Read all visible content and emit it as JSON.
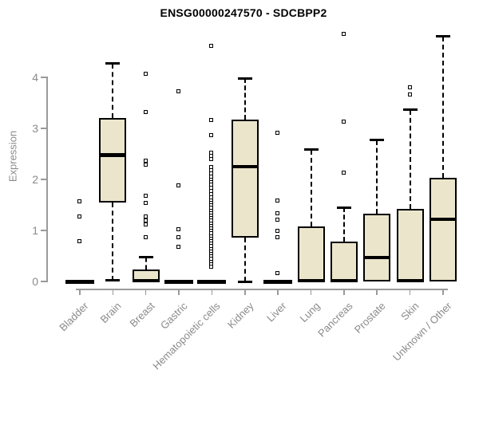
{
  "chart_data": {
    "type": "boxplot",
    "title": "ENSG00000247570 - SDCBPP2",
    "ylabel": "Expression",
    "xlabel": "",
    "ylim": [
      0,
      4.9
    ],
    "yticks": [
      0,
      1,
      2,
      3,
      4
    ],
    "grid": false,
    "legend": "none",
    "colors": {
      "box_fill": "#EBE6CB",
      "box_border": "#000000",
      "median": "#000000",
      "axis": "#9a9a9a",
      "tick_text": "#8a8a8a",
      "title_text": "#000000",
      "background": "#ffffff"
    },
    "categories": [
      "Bladder",
      "Brain",
      "Breast",
      "Gastric",
      "Hematopoietic cells",
      "Kidney",
      "Liver",
      "Lung",
      "Pancreas",
      "Prostate",
      "Skin",
      "Unknown / Other"
    ],
    "boxes": [
      {
        "name": "Bladder",
        "whisker_low": 0,
        "q1": 0,
        "median": 0,
        "q3": 0,
        "whisker_high": 0,
        "outliers": [
          1.56,
          1.27,
          0.78
        ]
      },
      {
        "name": "Brain",
        "whisker_low": 0.02,
        "q1": 1.55,
        "median": 2.48,
        "q3": 3.2,
        "whisker_high": 4.27,
        "outliers": []
      },
      {
        "name": "Breast",
        "whisker_low": 0,
        "q1": 0,
        "median": 0,
        "q3": 0.23,
        "whisker_high": 0.47,
        "outliers": [
          4.06,
          3.31,
          2.36,
          2.28,
          1.67,
          1.53,
          1.27,
          1.19,
          1.11,
          0.86
        ]
      },
      {
        "name": "Gastric",
        "whisker_low": 0,
        "q1": 0,
        "median": 0,
        "q3": 0,
        "whisker_high": 0,
        "outliers": [
          3.72,
          1.88,
          1.02,
          0.86,
          0.67
        ]
      },
      {
        "name": "Hematopoietic cells",
        "whisker_low": 0,
        "q1": 0,
        "median": 0,
        "q3": 0,
        "whisker_high": 0,
        "outliers": [
          4.61,
          3.15,
          2.86,
          2.52,
          2.45,
          2.39,
          2.23,
          2.17,
          2.11,
          2.05,
          1.99,
          1.94,
          1.89,
          1.83,
          1.77,
          1.7,
          1.64,
          1.58,
          1.53,
          1.48,
          1.43,
          1.38,
          1.33,
          1.28,
          1.23,
          1.18,
          1.13,
          1.08,
          1.03,
          0.98,
          0.93,
          0.88,
          0.83,
          0.78,
          0.73,
          0.68,
          0.63,
          0.58,
          0.53,
          0.48,
          0.44,
          0.38,
          0.33,
          0.28
        ]
      },
      {
        "name": "Kidney",
        "whisker_low": 0,
        "q1": 0.86,
        "median": 2.25,
        "q3": 3.17,
        "whisker_high": 3.98,
        "outliers": []
      },
      {
        "name": "Liver",
        "whisker_low": 0,
        "q1": 0,
        "median": 0,
        "q3": 0,
        "whisker_high": 0,
        "outliers": [
          2.91,
          1.58,
          1.33,
          1.2,
          0.98,
          0.86,
          0.16
        ]
      },
      {
        "name": "Lung",
        "whisker_low": 0,
        "q1": 0,
        "median": 0,
        "q3": 1.08,
        "whisker_high": 2.58,
        "outliers": []
      },
      {
        "name": "Pancreas",
        "whisker_low": 0,
        "q1": 0,
        "median": 0,
        "q3": 0.78,
        "whisker_high": 1.45,
        "outliers": [
          4.84,
          3.12,
          2.12
        ]
      },
      {
        "name": "Prostate",
        "whisker_low": 0,
        "q1": 0,
        "median": 0.47,
        "q3": 1.33,
        "whisker_high": 2.77,
        "outliers": []
      },
      {
        "name": "Skin",
        "whisker_low": 0,
        "q1": 0,
        "median": 0,
        "q3": 1.42,
        "whisker_high": 3.36,
        "outliers": [
          3.8,
          3.66
        ]
      },
      {
        "name": "Unknown / Other",
        "whisker_low": 0,
        "q1": 0,
        "median": 1.22,
        "q3": 2.03,
        "whisker_high": 4.8,
        "outliers": []
      }
    ]
  }
}
